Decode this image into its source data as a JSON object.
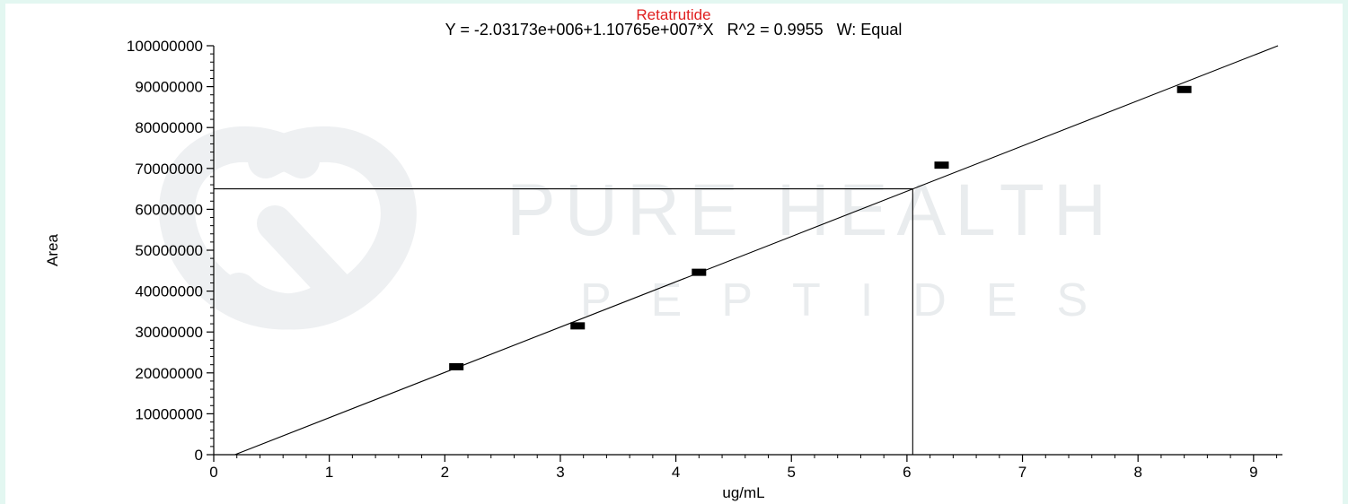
{
  "chart_data": {
    "type": "scatter",
    "title": "Retatrutide",
    "title_color": "#e02020",
    "equation_text": "Y = -2.03173e+006+1.10765e+007*X   R^2 = 0.9955   W: Equal",
    "xlabel": "ug/mL",
    "ylabel": "Area",
    "xlim": [
      0,
      9.25
    ],
    "ylim": [
      0,
      100000000
    ],
    "x_ticks": [
      0,
      1,
      2,
      3,
      4,
      5,
      6,
      7,
      8,
      9
    ],
    "y_ticks": [
      0,
      10000000,
      20000000,
      30000000,
      40000000,
      50000000,
      60000000,
      70000000,
      80000000,
      90000000,
      100000000
    ],
    "grid": false,
    "series": [
      {
        "points": [
          {
            "x": 2.1,
            "y": 21500000
          },
          {
            "x": 3.15,
            "y": 31500000
          },
          {
            "x": 4.2,
            "y": 44600000
          },
          {
            "x": 6.3,
            "y": 70800000
          },
          {
            "x": 8.4,
            "y": 89300000
          }
        ]
      }
    ],
    "regression": {
      "intercept": -2031730,
      "slope": 11076500
    },
    "readout": {
      "x": 6.05,
      "y": 65000000
    },
    "watermark": {
      "line1": "PURE HEALTH",
      "line2": "PEPTIDES"
    }
  }
}
